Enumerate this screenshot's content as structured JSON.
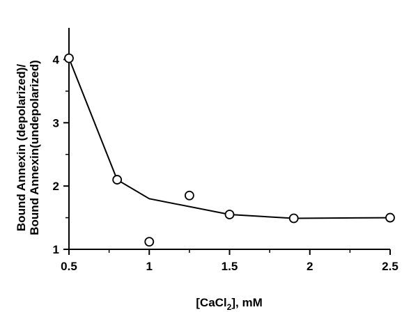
{
  "chart_data": {
    "type": "scatter",
    "xlabel": "[CaCl2], mM",
    "xlabel_parts": {
      "prefix": "[CaCl",
      "subscript": "2",
      "suffix": "], mM"
    },
    "ylabel_lines": [
      "Bound Annexin (depolarized)/",
      "Bound Annexin(undepolarized)"
    ],
    "xlim": [
      0.5,
      2.5
    ],
    "ylim": [
      1,
      4.5
    ],
    "x_ticks": [
      0.5,
      1,
      1.5,
      2,
      2.5
    ],
    "x_tick_labels": [
      "0.5",
      "1",
      "1.5",
      "2",
      "2.5"
    ],
    "x_minor_ticks": [
      0.75,
      1.25,
      1.75,
      2.25
    ],
    "y_ticks": [
      1,
      2,
      3,
      4
    ],
    "y_tick_labels": [
      "1",
      "2",
      "3",
      "4"
    ],
    "y_minor_ticks": [
      1.5,
      2.5,
      3.5
    ],
    "grid": false,
    "points": [
      {
        "x": 0.5,
        "y": 4.02
      },
      {
        "x": 0.8,
        "y": 2.1
      },
      {
        "x": 1.0,
        "y": 1.12
      },
      {
        "x": 1.25,
        "y": 1.85
      },
      {
        "x": 1.5,
        "y": 1.55
      },
      {
        "x": 1.9,
        "y": 1.49
      },
      {
        "x": 2.5,
        "y": 1.5
      }
    ],
    "fit_line": [
      {
        "x": 0.5,
        "y": 4.02
      },
      {
        "x": 0.8,
        "y": 2.1
      },
      {
        "x": 1.0,
        "y": 1.8
      },
      {
        "x": 1.5,
        "y": 1.55
      },
      {
        "x": 1.9,
        "y": 1.49
      },
      {
        "x": 2.5,
        "y": 1.5
      }
    ],
    "colors": {
      "axis": "#000000",
      "line": "#000000",
      "marker_fill": "#ffffff",
      "marker_stroke": "#000000"
    }
  }
}
